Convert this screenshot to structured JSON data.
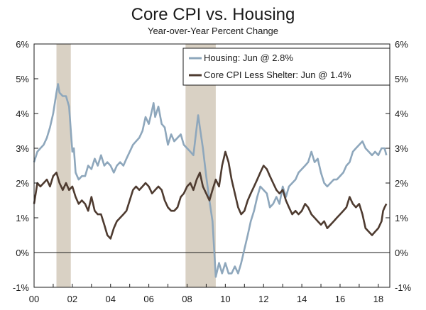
{
  "chart_data": {
    "type": "line",
    "title": "Core CPI vs. Housing",
    "subtitle": "Year-over-Year Percent Change",
    "xlabel": "",
    "ylabel": "",
    "xlim": [
      2000.0,
      2018.6
    ],
    "ylim": [
      -1,
      6
    ],
    "y_ticks": [
      -1,
      0,
      1,
      2,
      3,
      4,
      5,
      6
    ],
    "y_tick_labels_left": [
      "-1%",
      "0%",
      "1%",
      "2%",
      "3%",
      "4%",
      "5%",
      "6%"
    ],
    "y_tick_labels_right": [
      "-1%",
      "0%",
      "1%",
      "2%",
      "3%",
      "4%",
      "5%",
      "6%"
    ],
    "x_ticks": [
      2000,
      2002,
      2004,
      2006,
      2008,
      2010,
      2012,
      2014,
      2016,
      2018
    ],
    "x_tick_labels": [
      "00",
      "02",
      "04",
      "06",
      "08",
      "10",
      "12",
      "14",
      "16",
      "18"
    ],
    "grid": false,
    "zero_line": true,
    "legend_position": "top-right",
    "recession_shading": [
      [
        2001.17,
        2001.92
      ],
      [
        2007.92,
        2009.5
      ]
    ],
    "colors": {
      "housing": "#8ea7bc",
      "core": "#4e3b30",
      "recession": "#d9d1c4"
    },
    "series": [
      {
        "name": "Housing: Jun @ 2.8%",
        "key": "housing",
        "points": [
          [
            2000.0,
            2.6
          ],
          [
            2000.17,
            2.9
          ],
          [
            2000.33,
            3.0
          ],
          [
            2000.5,
            3.1
          ],
          [
            2000.67,
            3.3
          ],
          [
            2000.83,
            3.6
          ],
          [
            2001.0,
            4.0
          ],
          [
            2001.17,
            4.6
          ],
          [
            2001.25,
            4.85
          ],
          [
            2001.33,
            4.6
          ],
          [
            2001.5,
            4.5
          ],
          [
            2001.67,
            4.5
          ],
          [
            2001.83,
            4.2
          ],
          [
            2002.0,
            2.9
          ],
          [
            2002.08,
            3.0
          ],
          [
            2002.17,
            2.3
          ],
          [
            2002.33,
            2.1
          ],
          [
            2002.5,
            2.2
          ],
          [
            2002.67,
            2.2
          ],
          [
            2002.83,
            2.5
          ],
          [
            2003.0,
            2.4
          ],
          [
            2003.17,
            2.7
          ],
          [
            2003.33,
            2.5
          ],
          [
            2003.5,
            2.8
          ],
          [
            2003.67,
            2.5
          ],
          [
            2003.83,
            2.6
          ],
          [
            2004.0,
            2.5
          ],
          [
            2004.17,
            2.3
          ],
          [
            2004.33,
            2.5
          ],
          [
            2004.5,
            2.6
          ],
          [
            2004.67,
            2.5
          ],
          [
            2004.83,
            2.7
          ],
          [
            2005.0,
            2.9
          ],
          [
            2005.17,
            3.1
          ],
          [
            2005.33,
            3.2
          ],
          [
            2005.5,
            3.3
          ],
          [
            2005.67,
            3.5
          ],
          [
            2005.83,
            3.9
          ],
          [
            2006.0,
            3.7
          ],
          [
            2006.17,
            4.1
          ],
          [
            2006.25,
            4.3
          ],
          [
            2006.33,
            3.9
          ],
          [
            2006.5,
            4.2
          ],
          [
            2006.67,
            3.7
          ],
          [
            2006.83,
            3.6
          ],
          [
            2007.0,
            3.1
          ],
          [
            2007.17,
            3.4
          ],
          [
            2007.33,
            3.2
          ],
          [
            2007.5,
            3.3
          ],
          [
            2007.67,
            3.4
          ],
          [
            2007.83,
            3.1
          ],
          [
            2008.0,
            3.0
          ],
          [
            2008.17,
            2.9
          ],
          [
            2008.33,
            2.8
          ],
          [
            2008.5,
            3.6
          ],
          [
            2008.58,
            3.95
          ],
          [
            2008.67,
            3.6
          ],
          [
            2008.83,
            3.0
          ],
          [
            2009.0,
            2.2
          ],
          [
            2009.17,
            1.5
          ],
          [
            2009.33,
            0.9
          ],
          [
            2009.5,
            -0.7
          ],
          [
            2009.67,
            -0.3
          ],
          [
            2009.83,
            -0.6
          ],
          [
            2010.0,
            -0.3
          ],
          [
            2010.17,
            -0.6
          ],
          [
            2010.33,
            -0.6
          ],
          [
            2010.5,
            -0.4
          ],
          [
            2010.67,
            -0.6
          ],
          [
            2010.83,
            -0.3
          ],
          [
            2011.0,
            0.1
          ],
          [
            2011.17,
            0.5
          ],
          [
            2011.33,
            0.9
          ],
          [
            2011.5,
            1.2
          ],
          [
            2011.67,
            1.6
          ],
          [
            2011.83,
            1.9
          ],
          [
            2012.0,
            1.8
          ],
          [
            2012.17,
            1.7
          ],
          [
            2012.33,
            1.3
          ],
          [
            2012.5,
            1.4
          ],
          [
            2012.67,
            1.6
          ],
          [
            2012.83,
            1.4
          ],
          [
            2013.0,
            1.9
          ],
          [
            2013.17,
            1.6
          ],
          [
            2013.33,
            1.9
          ],
          [
            2013.5,
            2.0
          ],
          [
            2013.67,
            2.1
          ],
          [
            2013.83,
            2.3
          ],
          [
            2014.0,
            2.4
          ],
          [
            2014.17,
            2.5
          ],
          [
            2014.33,
            2.6
          ],
          [
            2014.5,
            2.9
          ],
          [
            2014.67,
            2.6
          ],
          [
            2014.83,
            2.7
          ],
          [
            2015.0,
            2.3
          ],
          [
            2015.17,
            2.0
          ],
          [
            2015.33,
            1.9
          ],
          [
            2015.5,
            2.0
          ],
          [
            2015.67,
            2.1
          ],
          [
            2015.83,
            2.1
          ],
          [
            2016.0,
            2.2
          ],
          [
            2016.17,
            2.3
          ],
          [
            2016.33,
            2.5
          ],
          [
            2016.5,
            2.6
          ],
          [
            2016.67,
            2.9
          ],
          [
            2016.83,
            3.0
          ],
          [
            2017.0,
            3.1
          ],
          [
            2017.17,
            3.2
          ],
          [
            2017.33,
            3.0
          ],
          [
            2017.5,
            2.9
          ],
          [
            2017.67,
            2.8
          ],
          [
            2017.83,
            2.9
          ],
          [
            2018.0,
            2.8
          ],
          [
            2018.17,
            3.0
          ],
          [
            2018.33,
            3.0
          ],
          [
            2018.42,
            2.8
          ]
        ]
      },
      {
        "name": "Core CPI Less Shelter: Jun @ 1.4%",
        "key": "core",
        "points": [
          [
            2000.0,
            1.4
          ],
          [
            2000.17,
            2.0
          ],
          [
            2000.33,
            1.9
          ],
          [
            2000.5,
            2.0
          ],
          [
            2000.67,
            2.1
          ],
          [
            2000.83,
            1.9
          ],
          [
            2001.0,
            2.2
          ],
          [
            2001.17,
            2.3
          ],
          [
            2001.33,
            2.0
          ],
          [
            2001.5,
            1.8
          ],
          [
            2001.67,
            2.0
          ],
          [
            2001.83,
            1.8
          ],
          [
            2002.0,
            1.9
          ],
          [
            2002.17,
            1.6
          ],
          [
            2002.33,
            1.4
          ],
          [
            2002.5,
            1.5
          ],
          [
            2002.67,
            1.4
          ],
          [
            2002.83,
            1.2
          ],
          [
            2003.0,
            1.6
          ],
          [
            2003.17,
            1.2
          ],
          [
            2003.33,
            1.1
          ],
          [
            2003.5,
            1.1
          ],
          [
            2003.67,
            0.8
          ],
          [
            2003.83,
            0.5
          ],
          [
            2004.0,
            0.4
          ],
          [
            2004.17,
            0.7
          ],
          [
            2004.33,
            0.9
          ],
          [
            2004.5,
            1.0
          ],
          [
            2004.67,
            1.1
          ],
          [
            2004.83,
            1.2
          ],
          [
            2005.0,
            1.5
          ],
          [
            2005.17,
            1.8
          ],
          [
            2005.33,
            1.9
          ],
          [
            2005.5,
            1.8
          ],
          [
            2005.67,
            1.9
          ],
          [
            2005.83,
            2.0
          ],
          [
            2006.0,
            1.9
          ],
          [
            2006.17,
            1.7
          ],
          [
            2006.33,
            1.8
          ],
          [
            2006.5,
            1.9
          ],
          [
            2006.67,
            1.8
          ],
          [
            2006.83,
            1.5
          ],
          [
            2007.0,
            1.3
          ],
          [
            2007.17,
            1.2
          ],
          [
            2007.33,
            1.2
          ],
          [
            2007.5,
            1.3
          ],
          [
            2007.67,
            1.6
          ],
          [
            2007.83,
            1.7
          ],
          [
            2008.0,
            1.9
          ],
          [
            2008.17,
            2.0
          ],
          [
            2008.33,
            1.8
          ],
          [
            2008.5,
            2.1
          ],
          [
            2008.67,
            2.3
          ],
          [
            2008.83,
            1.9
          ],
          [
            2009.0,
            1.7
          ],
          [
            2009.17,
            1.5
          ],
          [
            2009.33,
            1.8
          ],
          [
            2009.5,
            2.1
          ],
          [
            2009.67,
            1.9
          ],
          [
            2009.83,
            2.5
          ],
          [
            2010.0,
            2.9
          ],
          [
            2010.17,
            2.6
          ],
          [
            2010.33,
            2.1
          ],
          [
            2010.5,
            1.7
          ],
          [
            2010.67,
            1.3
          ],
          [
            2010.83,
            1.1
          ],
          [
            2011.0,
            1.2
          ],
          [
            2011.17,
            1.5
          ],
          [
            2011.33,
            1.7
          ],
          [
            2011.5,
            1.9
          ],
          [
            2011.67,
            2.1
          ],
          [
            2011.83,
            2.3
          ],
          [
            2012.0,
            2.5
          ],
          [
            2012.17,
            2.4
          ],
          [
            2012.33,
            2.2
          ],
          [
            2012.5,
            2.0
          ],
          [
            2012.67,
            1.8
          ],
          [
            2012.83,
            1.7
          ],
          [
            2013.0,
            1.8
          ],
          [
            2013.17,
            1.5
          ],
          [
            2013.33,
            1.3
          ],
          [
            2013.5,
            1.1
          ],
          [
            2013.67,
            1.2
          ],
          [
            2013.83,
            1.1
          ],
          [
            2014.0,
            1.2
          ],
          [
            2014.17,
            1.4
          ],
          [
            2014.33,
            1.3
          ],
          [
            2014.5,
            1.1
          ],
          [
            2014.67,
            1.0
          ],
          [
            2014.83,
            0.9
          ],
          [
            2015.0,
            0.8
          ],
          [
            2015.17,
            0.9
          ],
          [
            2015.33,
            0.7
          ],
          [
            2015.5,
            0.8
          ],
          [
            2015.67,
            0.9
          ],
          [
            2015.83,
            1.0
          ],
          [
            2016.0,
            1.1
          ],
          [
            2016.17,
            1.2
          ],
          [
            2016.33,
            1.3
          ],
          [
            2016.5,
            1.6
          ],
          [
            2016.67,
            1.4
          ],
          [
            2016.83,
            1.3
          ],
          [
            2017.0,
            1.4
          ],
          [
            2017.17,
            1.1
          ],
          [
            2017.33,
            0.7
          ],
          [
            2017.5,
            0.6
          ],
          [
            2017.67,
            0.5
          ],
          [
            2017.83,
            0.6
          ],
          [
            2018.0,
            0.7
          ],
          [
            2018.17,
            0.9
          ],
          [
            2018.25,
            1.2
          ],
          [
            2018.33,
            1.3
          ],
          [
            2018.42,
            1.4
          ]
        ]
      }
    ]
  }
}
